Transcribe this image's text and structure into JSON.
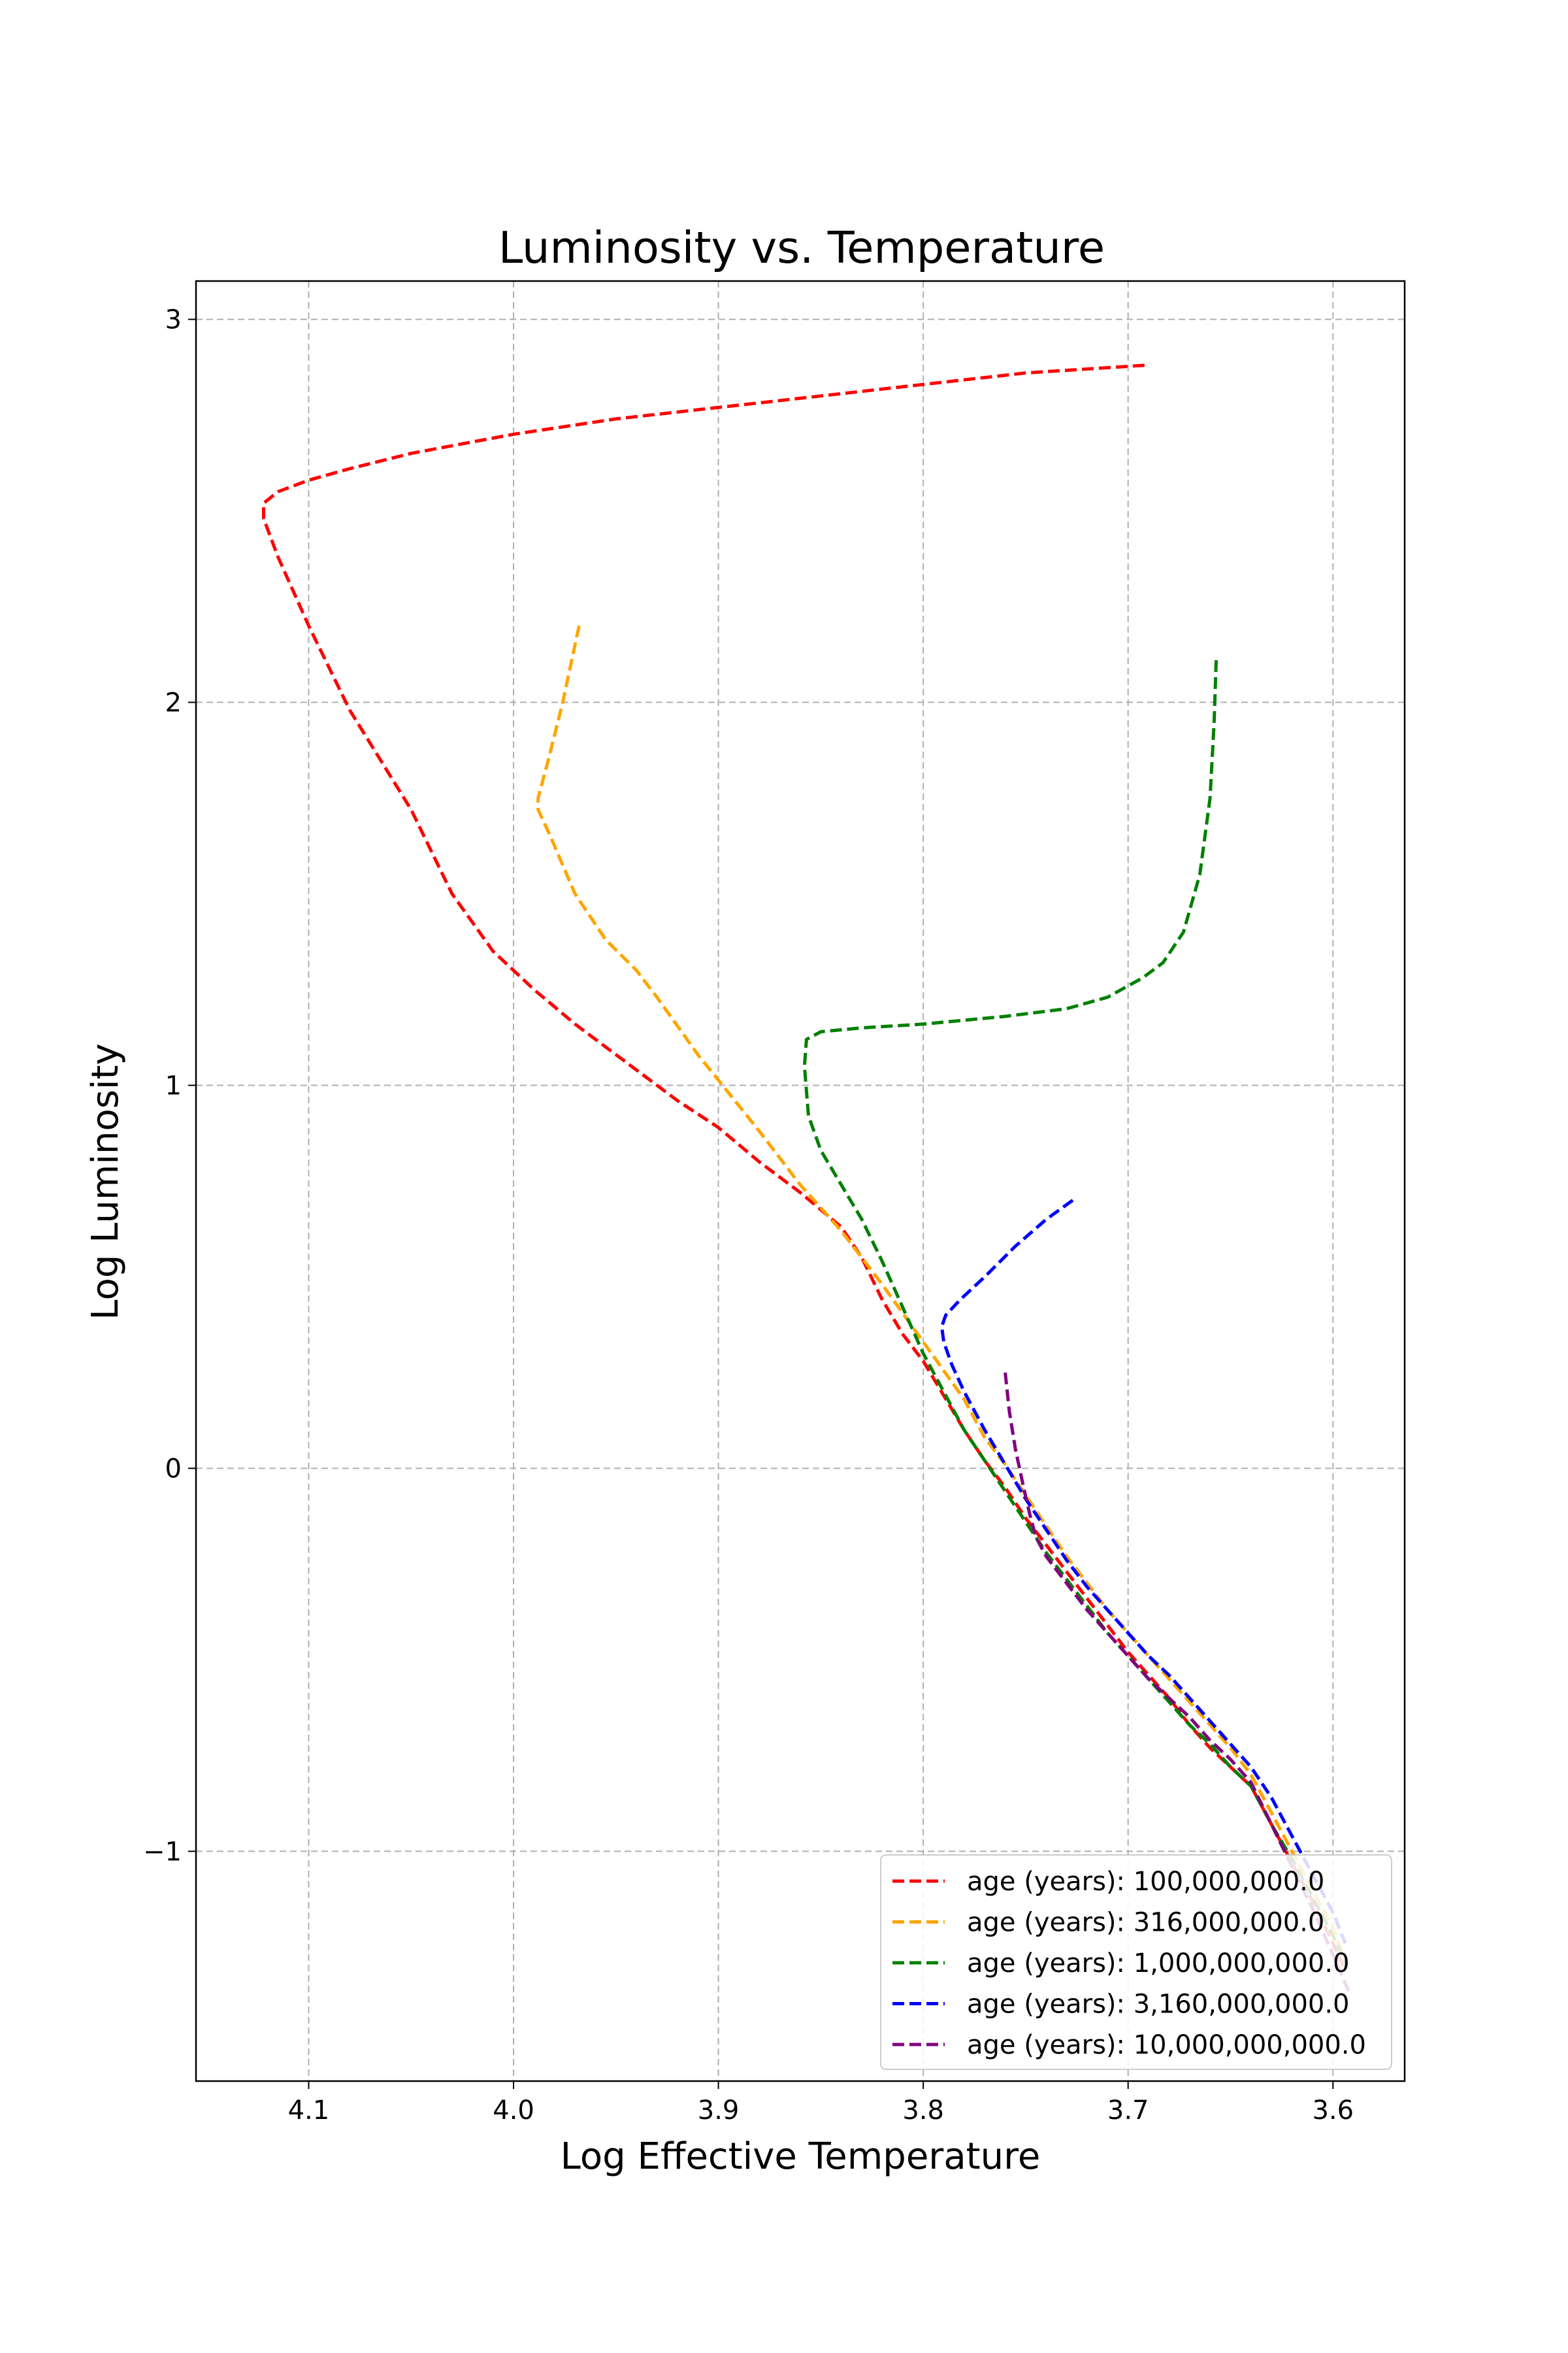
{
  "chart_data": {
    "type": "line",
    "title": "Luminosity vs. Temperature",
    "xlabel": "Log Effective Temperature",
    "ylabel": "Log Luminosity",
    "xlim": [
      4.155,
      3.565
    ],
    "ylim": [
      -1.6,
      3.1
    ],
    "x_inverted": true,
    "grid": true,
    "legend_position": "lower-right",
    "x_ticks": [
      4.1,
      4.0,
      3.9,
      3.8,
      3.7,
      3.6
    ],
    "x_tick_labels": [
      "4.1",
      "4.0",
      "3.9",
      "3.8",
      "3.7",
      "3.6"
    ],
    "y_ticks": [
      3,
      2,
      1,
      0,
      -1
    ],
    "y_tick_labels": [
      "3",
      "2",
      "1",
      "0",
      "−1"
    ],
    "series": [
      {
        "name": "age (years): 100,000,000.0",
        "color": "#ff0000",
        "x": [
          3.692,
          3.75,
          3.8,
          3.85,
          3.9,
          3.95,
          4.0,
          4.05,
          4.08,
          4.1,
          4.115,
          4.122,
          4.122,
          4.115,
          4.1,
          4.08,
          4.05,
          4.03,
          4.01,
          3.99,
          3.97,
          3.95,
          3.92,
          3.9,
          3.88,
          3.86,
          3.84,
          3.83,
          3.82,
          3.81,
          3.8,
          3.79,
          3.78,
          3.77,
          3.76,
          3.75,
          3.74,
          3.73,
          3.72,
          3.71,
          3.7,
          3.69,
          3.68,
          3.67,
          3.66,
          3.65,
          3.64,
          3.63,
          3.62,
          3.61,
          3.6,
          3.595
        ],
        "y": [
          2.88,
          2.86,
          2.83,
          2.8,
          2.77,
          2.74,
          2.7,
          2.65,
          2.61,
          2.58,
          2.55,
          2.52,
          2.48,
          2.38,
          2.2,
          1.98,
          1.72,
          1.5,
          1.35,
          1.25,
          1.16,
          1.08,
          0.96,
          0.89,
          0.8,
          0.72,
          0.63,
          0.55,
          0.44,
          0.35,
          0.28,
          0.19,
          0.1,
          0.02,
          -0.05,
          -0.13,
          -0.2,
          -0.27,
          -0.34,
          -0.41,
          -0.48,
          -0.54,
          -0.6,
          -0.67,
          -0.73,
          -0.78,
          -0.83,
          -0.93,
          -1.03,
          -1.13,
          -1.24,
          -1.3
        ]
      },
      {
        "name": "age (years): 316,000,000.0",
        "color": "#ffa500",
        "x": [
          3.968,
          3.976,
          3.983,
          3.988,
          3.988,
          3.982,
          3.97,
          3.955,
          3.94,
          3.93,
          3.91,
          3.895,
          3.88,
          3.86,
          3.84,
          3.82,
          3.8,
          3.78,
          3.77,
          3.76,
          3.75,
          3.74,
          3.73,
          3.72,
          3.71,
          3.7,
          3.69,
          3.68,
          3.67,
          3.66,
          3.65,
          3.64,
          3.63,
          3.62,
          3.61,
          3.6,
          3.593
        ],
        "y": [
          2.2,
          2.0,
          1.85,
          1.75,
          1.72,
          1.65,
          1.5,
          1.38,
          1.3,
          1.23,
          1.08,
          0.98,
          0.88,
          0.74,
          0.62,
          0.48,
          0.33,
          0.18,
          0.08,
          0.01,
          -0.07,
          -0.15,
          -0.23,
          -0.3,
          -0.37,
          -0.43,
          -0.49,
          -0.55,
          -0.61,
          -0.67,
          -0.73,
          -0.8,
          -0.9,
          -1.0,
          -1.1,
          -1.2,
          -1.3
        ]
      },
      {
        "name": "age (years): 1,000,000,000.0",
        "color": "#008000",
        "x": [
          3.657,
          3.658,
          3.66,
          3.665,
          3.673,
          3.683,
          3.693,
          3.7,
          3.71,
          3.73,
          3.76,
          3.8,
          3.83,
          3.85,
          3.857,
          3.858,
          3.856,
          3.85,
          3.84,
          3.83,
          3.82,
          3.81,
          3.8,
          3.79,
          3.78,
          3.77,
          3.76,
          3.75,
          3.74,
          3.73,
          3.72,
          3.71,
          3.7,
          3.69,
          3.68,
          3.67,
          3.66,
          3.65,
          3.64,
          3.63,
          3.62,
          3.61,
          3.6,
          3.593
        ],
        "y": [
          2.11,
          1.95,
          1.75,
          1.55,
          1.4,
          1.32,
          1.28,
          1.26,
          1.23,
          1.2,
          1.18,
          1.16,
          1.15,
          1.14,
          1.12,
          1.05,
          0.92,
          0.83,
          0.74,
          0.65,
          0.54,
          0.42,
          0.3,
          0.2,
          0.1,
          0.02,
          -0.06,
          -0.14,
          -0.22,
          -0.29,
          -0.36,
          -0.43,
          -0.49,
          -0.55,
          -0.61,
          -0.67,
          -0.72,
          -0.78,
          -0.83,
          -0.93,
          -1.02,
          -1.12,
          -1.22,
          -1.3
        ]
      },
      {
        "name": "age (years): 3,160,000,000.0",
        "color": "#0000ff",
        "x": [
          3.727,
          3.74,
          3.755,
          3.77,
          3.782,
          3.789,
          3.791,
          3.79,
          3.786,
          3.78,
          3.77,
          3.76,
          3.75,
          3.74,
          3.73,
          3.72,
          3.71,
          3.7,
          3.69,
          3.68,
          3.67,
          3.66,
          3.65,
          3.64,
          3.63,
          3.62,
          3.61,
          3.6,
          3.594
        ],
        "y": [
          0.7,
          0.65,
          0.58,
          0.5,
          0.44,
          0.4,
          0.37,
          0.33,
          0.27,
          0.2,
          0.1,
          0.01,
          -0.08,
          -0.16,
          -0.24,
          -0.31,
          -0.37,
          -0.43,
          -0.49,
          -0.54,
          -0.6,
          -0.66,
          -0.72,
          -0.78,
          -0.86,
          -0.96,
          -1.06,
          -1.16,
          -1.24
        ]
      },
      {
        "name": "age (years): 10,000,000,000.0",
        "color": "#800080",
        "x": [
          3.76,
          3.758,
          3.755,
          3.751,
          3.748,
          3.745,
          3.74,
          3.73,
          3.72,
          3.71,
          3.7,
          3.69,
          3.68,
          3.67,
          3.66,
          3.65,
          3.64,
          3.63,
          3.62,
          3.61,
          3.6,
          3.592
        ],
        "y": [
          0.25,
          0.15,
          0.05,
          -0.05,
          -0.12,
          -0.18,
          -0.23,
          -0.3,
          -0.37,
          -0.43,
          -0.49,
          -0.55,
          -0.6,
          -0.65,
          -0.71,
          -0.76,
          -0.82,
          -0.93,
          -1.04,
          -1.15,
          -1.27,
          -1.37
        ]
      }
    ]
  }
}
